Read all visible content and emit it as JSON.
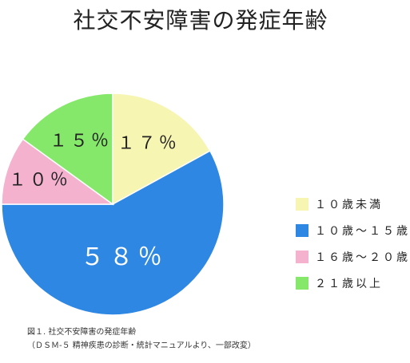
{
  "chart_data": {
    "type": "pie",
    "title": "社交不安障害の発症年齢",
    "slices": [
      {
        "name": "１０歳未満",
        "value": 17,
        "label": "１７％",
        "color": "#f7f5b2"
      },
      {
        "name": "１０歳〜１５歳",
        "value": 58,
        "label": "５８％",
        "color": "#2e87e2"
      },
      {
        "name": "１６歳〜２０歳",
        "value": 10,
        "label": "１０％",
        "color": "#f5b2ce"
      },
      {
        "name": "２１歳以上",
        "value": 15,
        "label": "１５％",
        "color": "#86e86a"
      }
    ],
    "legend_position": "right",
    "start_angle_deg": 0,
    "direction": "clockwise"
  },
  "caption": {
    "line1": "図１. 社交不安障害の発症年齢",
    "line2": "（ＤＳＭ-５ 精神疾患の診断・統計マニュアルより、一部改変）"
  }
}
